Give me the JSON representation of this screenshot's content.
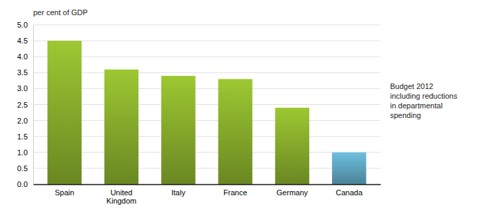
{
  "chart_data": {
    "type": "bar",
    "ylabel": "per cent of GDP",
    "annotation": "Budget 2012\nincluding reductions\nin departmental\nspending",
    "categories": [
      "Spain",
      "United\nKingdom",
      "Italy",
      "France",
      "Germany",
      "Canada"
    ],
    "values": [
      4.5,
      3.6,
      3.4,
      3.3,
      2.4,
      1.0
    ],
    "colors": [
      "#9dc832",
      "#9dc832",
      "#9dc832",
      "#9dc832",
      "#9dc832",
      "#6ec0e0"
    ],
    "ylim": [
      0,
      5.0
    ],
    "yticks": [
      {
        "value": 0.0,
        "label": "0.0"
      },
      0.5,
      {
        "value": 1.0,
        "label": "1.0"
      },
      1.5,
      {
        "value": 2.0,
        "label": "2.0"
      },
      2.5,
      {
        "value": 3.0,
        "label": "3.0"
      },
      3.5,
      {
        "value": 4.0,
        "label": "4.0"
      },
      4.5,
      {
        "value": 5.0,
        "label": "5.0"
      }
    ],
    "grid": true
  }
}
